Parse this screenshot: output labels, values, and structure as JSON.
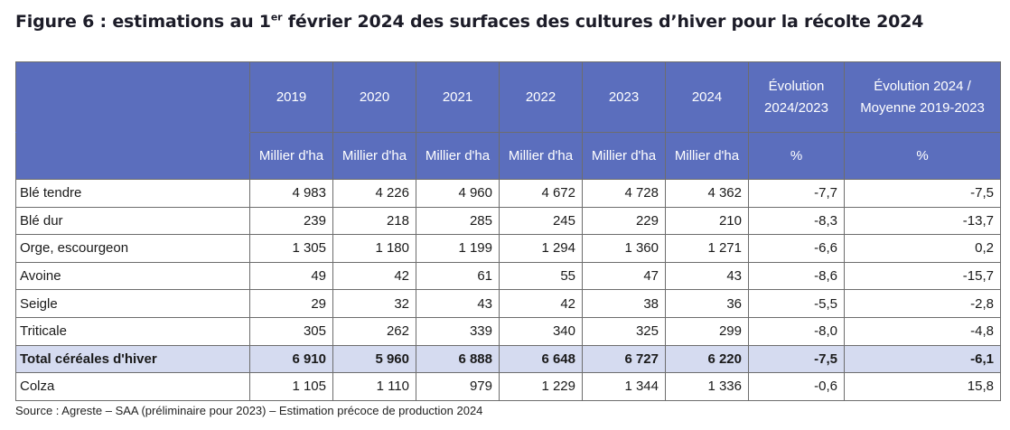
{
  "title": {
    "prefix": "Figure 6 : estimations au 1",
    "sup": "er",
    "suffix": " février 2024 des surfaces des cultures d’hiver pour la récolte 2024"
  },
  "header": {
    "years": [
      "2019",
      "2020",
      "2021",
      "2022",
      "2023",
      "2024"
    ],
    "evolution": "Évolution 2024/2023",
    "evolution_avg": "Évolution 2024 / Moyenne 2019-2023",
    "unit": "Millier d'ha",
    "percent": "%"
  },
  "rows": [
    {
      "label": "Blé tendre",
      "values": [
        "4 983",
        "4 226",
        "4 960",
        "4 672",
        "4 728",
        "4 362",
        "-7,7",
        "-7,5"
      ],
      "total": false
    },
    {
      "label": "Blé dur",
      "values": [
        "239",
        "218",
        "285",
        "245",
        "229",
        "210",
        "-8,3",
        "-13,7"
      ],
      "total": false
    },
    {
      "label": "Orge, escourgeon",
      "values": [
        "1 305",
        "1 180",
        "1 199",
        "1 294",
        "1 360",
        "1 271",
        "-6,6",
        "0,2"
      ],
      "total": false
    },
    {
      "label": "Avoine",
      "values": [
        "49",
        "42",
        "61",
        "55",
        "47",
        "43",
        "-8,6",
        "-15,7"
      ],
      "total": false
    },
    {
      "label": "Seigle",
      "values": [
        "29",
        "32",
        "43",
        "42",
        "38",
        "36",
        "-5,5",
        "-2,8"
      ],
      "total": false
    },
    {
      "label": "Triticale",
      "values": [
        "305",
        "262",
        "339",
        "340",
        "325",
        "299",
        "-8,0",
        "-4,8"
      ],
      "total": false
    },
    {
      "label": "Total céréales d'hiver",
      "values": [
        "6 910",
        "5 960",
        "6 888",
        "6 648",
        "6 727",
        "6 220",
        "-7,5",
        "-6,1"
      ],
      "total": true
    },
    {
      "label": "Colza",
      "values": [
        "1 105",
        "1 110",
        "979",
        "1 229",
        "1 344",
        "1 336",
        "-0,6",
        "15,8"
      ],
      "total": false
    }
  ],
  "source": "Source : Agreste – SAA (préliminaire pour 2023) – Estimation précoce de production 2024",
  "colors": {
    "header_bg": "#5b6ebd",
    "header_text": "#ffffff",
    "total_row_bg": "#d5dbf0",
    "border": "#6d6d6d"
  }
}
